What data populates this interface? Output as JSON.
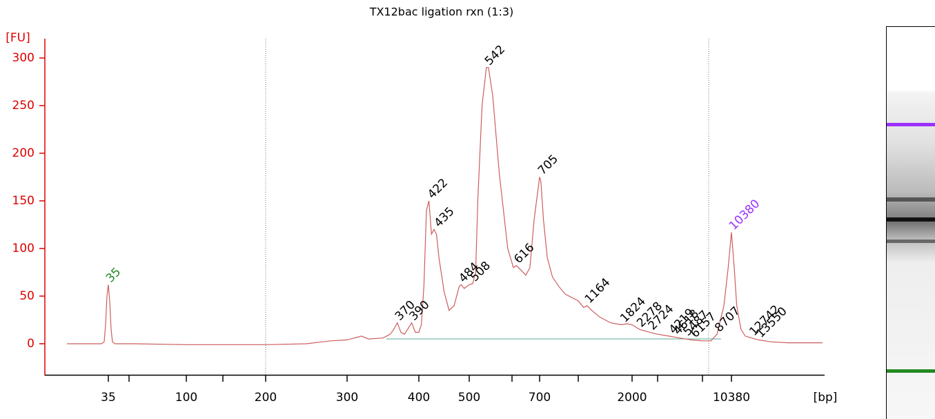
{
  "chart_data": {
    "type": "line",
    "title": "TX12bac ligation rxn (1:3)",
    "y_label": "[FU]",
    "x_label": "[bp]",
    "ylim": [
      -33,
      320
    ],
    "yticks": [
      0,
      50,
      100,
      150,
      200,
      250,
      300
    ],
    "xticks": [
      35,
      {
        "value": 50,
        "label": null
      },
      100,
      {
        "value": 150,
        "label": null
      },
      200,
      300,
      400,
      500,
      {
        "value": 600,
        "label": null
      },
      700,
      {
        "value": 1000,
        "label": null
      },
      2000,
      {
        "value": 3000,
        "label": null
      },
      {
        "value": 7000,
        "label": null
      },
      10380
    ],
    "x": [
      5,
      30,
      32,
      33,
      34,
      35,
      36,
      37,
      38,
      40,
      55,
      100,
      200,
      250,
      270,
      280,
      300,
      320,
      330,
      350,
      360,
      365,
      370,
      375,
      380,
      390,
      395,
      400,
      405,
      410,
      415,
      420,
      425,
      430,
      435,
      440,
      450,
      460,
      470,
      480,
      484,
      490,
      500,
      508,
      515,
      520,
      530,
      540,
      545,
      555,
      570,
      590,
      605,
      616,
      630,
      650,
      665,
      680,
      700,
      710,
      730,
      760,
      800,
      850,
      900,
      1000,
      1100,
      1164,
      1250,
      1400,
      1600,
      1800,
      1900,
      2000,
      2300,
      2700,
      3000,
      4000,
      5000,
      6000,
      7000,
      8000,
      8700,
      9500,
      10000,
      10380,
      10700,
      11000,
      11500,
      12000,
      12742,
      13550,
      15000,
      17000,
      21000
    ],
    "series": [
      {
        "color": "#cd5c5c",
        "values": [
          0,
          0,
          2,
          20,
          50,
          62,
          45,
          15,
          2,
          0,
          0,
          -1,
          -1,
          0,
          2,
          3,
          4,
          8,
          5,
          6,
          10,
          15,
          22,
          12,
          10,
          22,
          12,
          12,
          20,
          60,
          140,
          150,
          115,
          120,
          115,
          90,
          55,
          35,
          40,
          60,
          62,
          58,
          62,
          63,
          75,
          150,
          250,
          290,
          290,
          260,
          180,
          100,
          80,
          82,
          78,
          72,
          80,
          130,
          175,
          170,
          130,
          90,
          70,
          60,
          52,
          45,
          38,
          40,
          35,
          28,
          22,
          20,
          21,
          20,
          15,
          12,
          10,
          8,
          6,
          4,
          3,
          3,
          10,
          40,
          80,
          117,
          80,
          40,
          15,
          8,
          6,
          4,
          2,
          1,
          1
        ]
      }
    ],
    "annotations": [
      {
        "text": "35",
        "x": 35,
        "y": 62,
        "color": "#228b22"
      },
      {
        "text": "370",
        "x": 370,
        "y": 22
      },
      {
        "text": "390",
        "x": 390,
        "y": 22
      },
      {
        "text": "422",
        "x": 422,
        "y": 150
      },
      {
        "text": "435",
        "x": 435,
        "y": 120
      },
      {
        "text": "484",
        "x": 484,
        "y": 62
      },
      {
        "text": "508",
        "x": 508,
        "y": 63
      },
      {
        "text": "542",
        "x": 542,
        "y": 290
      },
      {
        "text": "616",
        "x": 616,
        "y": 82
      },
      {
        "text": "705",
        "x": 705,
        "y": 175
      },
      {
        "text": "1164",
        "x": 1164,
        "y": 40
      },
      {
        "text": "1824",
        "x": 1824,
        "y": 20
      },
      {
        "text": "2278",
        "x": 2278,
        "y": 15
      },
      {
        "text": "2724",
        "x": 2724,
        "y": 12
      },
      {
        "text": "4219",
        "x": 4219,
        "y": 8
      },
      {
        "text": "4618",
        "x": 4618,
        "y": 7
      },
      {
        "text": "5487",
        "x": 5487,
        "y": 6
      },
      {
        "text": "6157",
        "x": 6157,
        "y": 4
      },
      {
        "text": "8707",
        "x": 8707,
        "y": 10
      },
      {
        "text": "10380",
        "x": 10380,
        "y": 117,
        "color": "#9b30ff"
      },
      {
        "text": "12742",
        "x": 12742,
        "y": 6
      },
      {
        "text": "13550",
        "x": 13550,
        "y": 4
      }
    ]
  }
}
